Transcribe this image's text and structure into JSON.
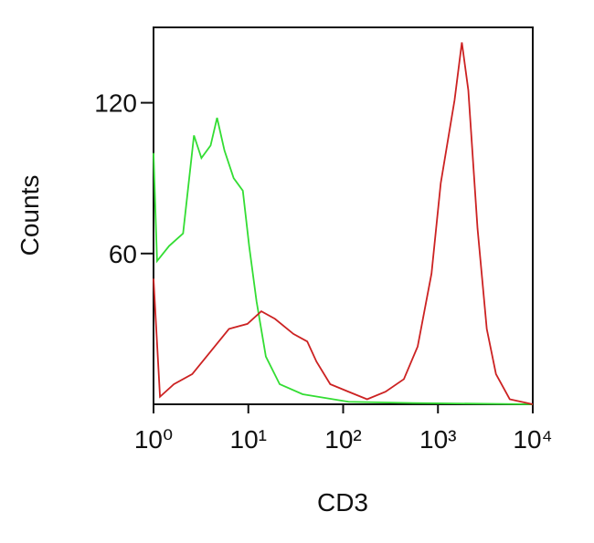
{
  "chart_data": {
    "type": "line",
    "x_label": "CD3",
    "y_label": "Counts",
    "xscale": "log",
    "xlim": [
      1,
      10000
    ],
    "xticks": [
      {
        "value": 1,
        "label": "10⁰"
      },
      {
        "value": 10,
        "label": "10¹"
      },
      {
        "value": 100,
        "label": "10²"
      },
      {
        "value": 1000,
        "label": "10³"
      },
      {
        "value": 10000,
        "label": "10⁴"
      }
    ],
    "ylim": [
      0,
      150
    ],
    "yticks": [
      60,
      120
    ],
    "series": [
      {
        "color": "#33dd33",
        "x": [
          1,
          1.09,
          1.46,
          2.05,
          2.67,
          3.2,
          4.0,
          4.68,
          5.6,
          7.0,
          8.75,
          10.2,
          12.2,
          15.3,
          21.4,
          37.4,
          114,
          547,
          10000
        ],
        "values": [
          100,
          57,
          63,
          68,
          107,
          98,
          103,
          114,
          101,
          90,
          85,
          63,
          41,
          19,
          8,
          4,
          1,
          0.5,
          0
        ]
      },
      {
        "color": "#cc2222",
        "x": [
          1,
          1.17,
          1.64,
          2.56,
          4.0,
          6.25,
          9.78,
          13.7,
          19.1,
          29.9,
          41.8,
          52.3,
          73.1,
          114,
          179,
          280,
          437,
          611,
          855,
          1070,
          1496,
          1787,
          2090,
          2614,
          3272,
          4093,
          5717,
          10000
        ],
        "values": [
          50,
          3,
          8,
          12,
          21,
          30,
          32,
          37,
          34,
          28,
          25,
          17,
          8,
          5,
          2,
          5,
          10,
          23,
          52,
          88,
          121,
          144,
          125,
          70,
          30,
          12,
          2,
          0
        ]
      }
    ]
  }
}
